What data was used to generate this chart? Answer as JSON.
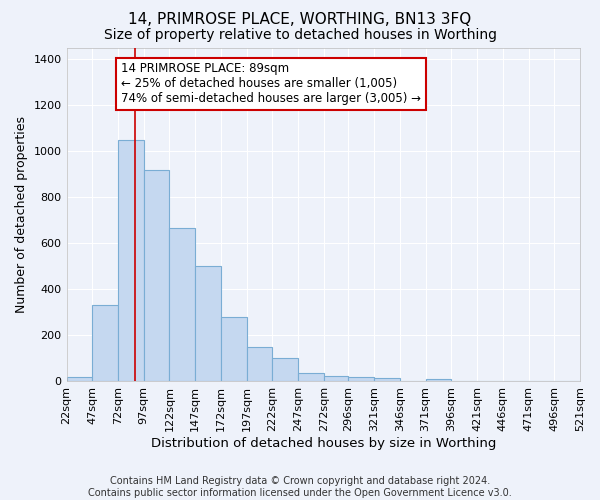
{
  "title": "14, PRIMROSE PLACE, WORTHING, BN13 3FQ",
  "subtitle": "Size of property relative to detached houses in Worthing",
  "xlabel": "Distribution of detached houses by size in Worthing",
  "ylabel": "Number of detached properties",
  "footer1": "Contains HM Land Registry data © Crown copyright and database right 2024.",
  "footer2": "Contains public sector information licensed under the Open Government Licence v3.0.",
  "bar_edges": [
    22,
    47,
    72,
    97,
    122,
    147,
    172,
    197,
    222,
    247,
    272,
    296,
    321,
    346,
    371,
    396,
    421,
    446,
    471,
    496,
    521
  ],
  "bar_heights": [
    20,
    330,
    1050,
    920,
    665,
    500,
    280,
    150,
    100,
    35,
    22,
    20,
    15,
    0,
    10,
    0,
    0,
    0,
    0,
    0
  ],
  "bar_color": "#c5d8f0",
  "bar_edge_color": "#7aadd4",
  "red_line_x": 89,
  "annotation_line1": "14 PRIMROSE PLACE: 89sqm",
  "annotation_line2": "← 25% of detached houses are smaller (1,005)",
  "annotation_line3": "74% of semi-detached houses are larger (3,005) →",
  "annotation_box_color": "#ffffff",
  "annotation_box_edge": "#cc0000",
  "background_color": "#eef2fa",
  "grid_color": "#ffffff",
  "ylim": [
    0,
    1450
  ],
  "title_fontsize": 11,
  "subtitle_fontsize": 10,
  "xlabel_fontsize": 9.5,
  "ylabel_fontsize": 9,
  "tick_fontsize": 8,
  "footer_fontsize": 7
}
